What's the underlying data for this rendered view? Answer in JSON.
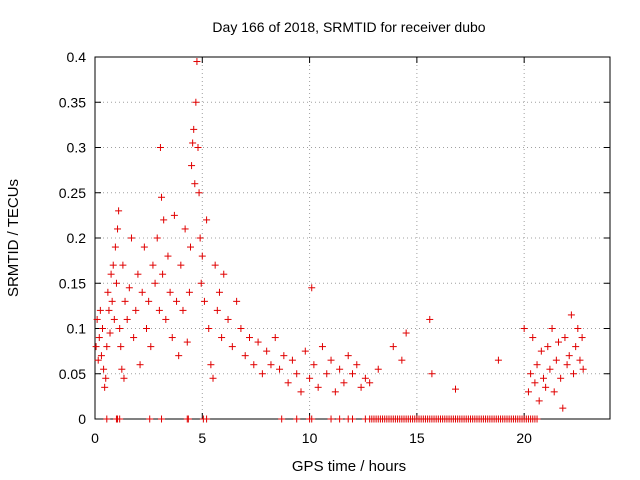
{
  "chart_data": {
    "type": "scatter",
    "title": "Day 166 of 2018, SRMTID for receiver dubo",
    "xlabel": "GPS time / hours",
    "ylabel": "SRMTID / TECUs",
    "xlim": [
      0,
      24
    ],
    "ylim": [
      0,
      0.4
    ],
    "xticks": [
      0,
      5,
      10,
      15,
      20
    ],
    "xtick_labels": [
      "0",
      "5",
      "10",
      "15",
      "20"
    ],
    "yticks": [
      0,
      0.05,
      0.1,
      0.15,
      0.2,
      0.25,
      0.3,
      0.35,
      0.4
    ],
    "ytick_labels": [
      "0",
      "0.05",
      "0.1",
      "0.15",
      "0.2",
      "0.25",
      "0.3",
      "0.35",
      "0.4"
    ],
    "grid": true,
    "marker": "+",
    "series": [
      {
        "name": "SRMTID",
        "color": "#e00000",
        "points": [
          [
            0.05,
            0.08
          ],
          [
            0.1,
            0.11
          ],
          [
            0.15,
            0.065
          ],
          [
            0.2,
            0.09
          ],
          [
            0.25,
            0.12
          ],
          [
            0.3,
            0.07
          ],
          [
            0.35,
            0.1
          ],
          [
            0.4,
            0.055
          ],
          [
            0.45,
            0.035
          ],
          [
            0.5,
            0.045
          ],
          [
            0.55,
            0.08
          ],
          [
            0.6,
            0.14
          ],
          [
            0.65,
            0.12
          ],
          [
            0.7,
            0.095
          ],
          [
            0.75,
            0.16
          ],
          [
            0.8,
            0.13
          ],
          [
            0.85,
            0.17
          ],
          [
            0.9,
            0.11
          ],
          [
            0.95,
            0.19
          ],
          [
            1.0,
            0.15
          ],
          [
            1.05,
            0.21
          ],
          [
            1.1,
            0.23
          ],
          [
            1.15,
            0.1
          ],
          [
            1.2,
            0.08
          ],
          [
            1.25,
            0.055
          ],
          [
            1.3,
            0.17
          ],
          [
            1.35,
            0.045
          ],
          [
            1.4,
            0.13
          ],
          [
            1.5,
            0.11
          ],
          [
            1.6,
            0.145
          ],
          [
            1.7,
            0.2
          ],
          [
            1.8,
            0.09
          ],
          [
            1.9,
            0.12
          ],
          [
            2.0,
            0.16
          ],
          [
            2.1,
            0.06
          ],
          [
            2.2,
            0.14
          ],
          [
            2.3,
            0.19
          ],
          [
            2.4,
            0.1
          ],
          [
            2.5,
            0.13
          ],
          [
            2.6,
            0.08
          ],
          [
            2.7,
            0.17
          ],
          [
            2.8,
            0.15
          ],
          [
            2.9,
            0.2
          ],
          [
            3.0,
            0.12
          ],
          [
            3.05,
            0.3
          ],
          [
            3.1,
            0.245
          ],
          [
            3.15,
            0.16
          ],
          [
            3.2,
            0.22
          ],
          [
            3.3,
            0.11
          ],
          [
            3.4,
            0.18
          ],
          [
            3.5,
            0.14
          ],
          [
            3.6,
            0.09
          ],
          [
            3.7,
            0.225
          ],
          [
            3.8,
            0.13
          ],
          [
            3.9,
            0.07
          ],
          [
            4.0,
            0.17
          ],
          [
            4.1,
            0.12
          ],
          [
            4.2,
            0.21
          ],
          [
            4.3,
            0.085
          ],
          [
            4.4,
            0.14
          ],
          [
            4.45,
            0.19
          ],
          [
            4.5,
            0.28
          ],
          [
            4.55,
            0.305
          ],
          [
            4.6,
            0.32
          ],
          [
            4.65,
            0.26
          ],
          [
            4.7,
            0.35
          ],
          [
            4.75,
            0.395
          ],
          [
            4.8,
            0.3
          ],
          [
            4.85,
            0.25
          ],
          [
            4.9,
            0.2
          ],
          [
            4.95,
            0.15
          ],
          [
            5.0,
            0.18
          ],
          [
            5.1,
            0.13
          ],
          [
            5.2,
            0.22
          ],
          [
            5.3,
            0.1
          ],
          [
            5.4,
            0.06
          ],
          [
            5.5,
            0.045
          ],
          [
            5.6,
            0.17
          ],
          [
            5.7,
            0.12
          ],
          [
            5.8,
            0.14
          ],
          [
            5.9,
            0.09
          ],
          [
            6.0,
            0.16
          ],
          [
            6.2,
            0.11
          ],
          [
            6.4,
            0.08
          ],
          [
            6.6,
            0.13
          ],
          [
            6.8,
            0.1
          ],
          [
            7.0,
            0.07
          ],
          [
            7.2,
            0.09
          ],
          [
            7.4,
            0.06
          ],
          [
            7.6,
            0.085
          ],
          [
            7.8,
            0.05
          ],
          [
            8.0,
            0.075
          ],
          [
            8.2,
            0.06
          ],
          [
            8.4,
            0.09
          ],
          [
            8.6,
            0.055
          ],
          [
            8.8,
            0.07
          ],
          [
            9.0,
            0.04
          ],
          [
            9.2,
            0.065
          ],
          [
            9.4,
            0.05
          ],
          [
            9.6,
            0.03
          ],
          [
            9.8,
            0.075
          ],
          [
            10.0,
            0.045
          ],
          [
            10.1,
            0.145
          ],
          [
            10.2,
            0.06
          ],
          [
            10.4,
            0.035
          ],
          [
            10.6,
            0.08
          ],
          [
            10.8,
            0.05
          ],
          [
            11.0,
            0.065
          ],
          [
            11.2,
            0.03
          ],
          [
            11.4,
            0.055
          ],
          [
            11.6,
            0.04
          ],
          [
            11.8,
            0.07
          ],
          [
            12.0,
            0.05
          ],
          [
            12.2,
            0.06
          ],
          [
            12.4,
            0.035
          ],
          [
            12.6,
            0.045
          ],
          [
            12.8,
            0.04
          ],
          [
            13.2,
            0.055
          ],
          [
            13.9,
            0.08
          ],
          [
            14.3,
            0.065
          ],
          [
            14.5,
            0.095
          ],
          [
            15.6,
            0.11
          ],
          [
            15.7,
            0.05
          ],
          [
            16.8,
            0.033
          ],
          [
            18.8,
            0.065
          ],
          [
            20.0,
            0.1
          ],
          [
            20.2,
            0.03
          ],
          [
            20.3,
            0.05
          ],
          [
            20.4,
            0.09
          ],
          [
            20.5,
            0.04
          ],
          [
            20.6,
            0.06
          ],
          [
            20.7,
            0.02
          ],
          [
            20.8,
            0.075
          ],
          [
            20.9,
            0.045
          ],
          [
            21.0,
            0.035
          ],
          [
            21.1,
            0.08
          ],
          [
            21.2,
            0.055
          ],
          [
            21.3,
            0.1
          ],
          [
            21.4,
            0.03
          ],
          [
            21.5,
            0.065
          ],
          [
            21.6,
            0.085
          ],
          [
            21.7,
            0.045
          ],
          [
            21.8,
            0.012
          ],
          [
            21.9,
            0.09
          ],
          [
            22.0,
            0.06
          ],
          [
            22.1,
            0.07
          ],
          [
            22.2,
            0.115
          ],
          [
            22.3,
            0.05
          ],
          [
            22.4,
            0.08
          ],
          [
            22.5,
            0.1
          ],
          [
            22.6,
            0.065
          ],
          [
            22.7,
            0.09
          ],
          [
            22.75,
            0.055
          ],
          [
            0.55,
            0
          ],
          [
            1.0,
            0
          ],
          [
            1.05,
            0
          ],
          [
            1.15,
            0
          ],
          [
            2.55,
            0
          ],
          [
            3.1,
            0
          ],
          [
            4.3,
            0
          ],
          [
            4.35,
            0
          ],
          [
            5.05,
            0
          ],
          [
            5.2,
            0
          ],
          [
            8.7,
            0
          ],
          [
            9.4,
            0
          ],
          [
            10.0,
            0
          ],
          [
            10.1,
            0
          ],
          [
            11.0,
            0
          ],
          [
            11.4,
            0
          ],
          [
            11.8,
            0
          ],
          [
            12.0,
            0
          ],
          [
            12.6,
            0
          ],
          [
            12.8,
            0
          ],
          [
            12.9,
            0
          ],
          [
            13.0,
            0
          ],
          [
            13.1,
            0
          ],
          [
            13.2,
            0
          ],
          [
            13.3,
            0
          ],
          [
            13.4,
            0
          ],
          [
            13.5,
            0
          ],
          [
            13.6,
            0
          ],
          [
            13.7,
            0
          ],
          [
            13.8,
            0
          ],
          [
            13.9,
            0
          ],
          [
            14.0,
            0
          ],
          [
            14.1,
            0
          ],
          [
            14.2,
            0
          ],
          [
            14.3,
            0
          ],
          [
            14.4,
            0
          ],
          [
            14.5,
            0
          ],
          [
            14.6,
            0
          ],
          [
            14.7,
            0
          ],
          [
            14.8,
            0
          ],
          [
            14.9,
            0
          ],
          [
            15.0,
            0
          ],
          [
            15.1,
            0
          ],
          [
            15.2,
            0
          ],
          [
            15.3,
            0
          ],
          [
            15.4,
            0
          ],
          [
            15.5,
            0
          ],
          [
            15.6,
            0
          ],
          [
            15.7,
            0
          ],
          [
            15.8,
            0
          ],
          [
            15.9,
            0
          ],
          [
            16.0,
            0
          ],
          [
            16.1,
            0
          ],
          [
            16.2,
            0
          ],
          [
            16.3,
            0
          ],
          [
            16.4,
            0
          ],
          [
            16.5,
            0
          ],
          [
            16.6,
            0
          ],
          [
            16.7,
            0
          ],
          [
            16.8,
            0
          ],
          [
            16.9,
            0
          ],
          [
            17.0,
            0
          ],
          [
            17.1,
            0
          ],
          [
            17.2,
            0
          ],
          [
            17.3,
            0
          ],
          [
            17.4,
            0
          ],
          [
            17.5,
            0
          ],
          [
            17.6,
            0
          ],
          [
            17.7,
            0
          ],
          [
            17.8,
            0
          ],
          [
            17.9,
            0
          ],
          [
            18.0,
            0
          ],
          [
            18.1,
            0
          ],
          [
            18.2,
            0
          ],
          [
            18.3,
            0
          ],
          [
            18.4,
            0
          ],
          [
            18.5,
            0
          ],
          [
            18.6,
            0
          ],
          [
            18.7,
            0
          ],
          [
            18.8,
            0
          ],
          [
            18.9,
            0
          ],
          [
            19.0,
            0
          ],
          [
            19.1,
            0
          ],
          [
            19.2,
            0
          ],
          [
            19.3,
            0
          ],
          [
            19.4,
            0
          ],
          [
            19.5,
            0
          ],
          [
            19.6,
            0
          ],
          [
            19.7,
            0
          ],
          [
            19.8,
            0
          ],
          [
            19.9,
            0
          ],
          [
            20.0,
            0
          ],
          [
            20.1,
            0
          ],
          [
            20.2,
            0
          ],
          [
            20.3,
            0
          ],
          [
            20.4,
            0
          ],
          [
            20.5,
            0
          ],
          [
            20.6,
            0
          ]
        ]
      }
    ]
  }
}
